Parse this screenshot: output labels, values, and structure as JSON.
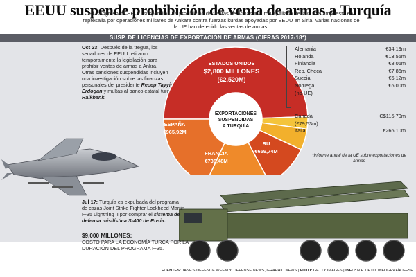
{
  "headline": "EEUU suspende prohibición de venta de armas a Turquía",
  "intro": "El Congreso de EEUU suspendió una prohibición de ventas de armas a Turquía, aliado de la OTAN, impuesta en represalia por operaciones militares de Ankara contra fuerzas kurdas apoyadas por EEUU en Siria. Varias naciones de la UE han detenido las ventas de armas.",
  "section_title": "SUSP. DE LICENCIAS DE EXPORTACIÓN DE ARMAS (CIFRAS 2017-18*)",
  "oct_note": {
    "date": "Oct 23:",
    "p1": "Después de la tregua, los senadores de EEUU retiraron temporalmente la legislación para prohibir ventas de armas a Ankra.",
    "p2a": "Otras sanciones suspendidas incluyen una investigación sobre las finanzas personales del presidente ",
    "person": "Recep Tayyip Erdogan",
    "p2b": " y multas al banco estatal turco ",
    "bank": "Halkbank."
  },
  "jul_note": {
    "date": "Jul 17:",
    "p1": " Turquía es expulsada del programa de cazas Joint Strike Fighter Lockheed Martin F-35 Lightning II por comprar el ",
    "system": "sistema de defensa misilística S-400 de Rusia."
  },
  "cost_note": {
    "amount": "$9,000 MILLONES:",
    "text": "COSTO PARA LA ECONOMÍA TURCA POR LA DURACIÓN DEL PROGRAMA F-35."
  },
  "donut": {
    "center_l1": "EXPORTACIONES",
    "center_l2": "SUSPENDIDAS",
    "center_l3": "A TURQUÍA",
    "usa_l1": "ESTADOS UNIDOS",
    "usa_l2": "$2,800 MILLONES",
    "usa_l3": "(€2,520M)",
    "spain_l1": "ESPAÑA",
    "spain_l2": "€965,92M",
    "france_l1": "FRANCIA",
    "france_l2": "€736,48M",
    "uk_l1": "RU",
    "uk_l2": "€659,74M",
    "colors": {
      "usa": "#c62d26",
      "spain": "#e6702a",
      "france": "#ef8a2a",
      "uk": "#d4491f",
      "others": "#f2b02c",
      "canada": "#f4c43b",
      "italy": "#f2b02c"
    }
  },
  "eu_list": [
    {
      "country": "Alemania",
      "value": "€34,19m"
    },
    {
      "country": "Holanda",
      "value": "€13,55m"
    },
    {
      "country": "Finlandia",
      "value": "€8,06m"
    },
    {
      "country": "Rep. Checa",
      "value": "€7,86m"
    },
    {
      "country": "Suecia",
      "value": "€6,12m"
    },
    {
      "country": "Noruega",
      "value": "€6,00m"
    },
    {
      "country": "(no-UE)",
      "value": ""
    }
  ],
  "other_list": {
    "canada": "Canadá",
    "canada_value": "C$115,70m",
    "canada_eur": "(€79,53m)",
    "italy": "Italia",
    "italy_value": "€266,10m"
  },
  "eu_note": "*Informe anual de la UE sobre exportaciones de armas",
  "footer": {
    "sources_label": "FUENTES:",
    "sources": " JANE'S DEFENCE WEEKLY, DEFENSE NEWS, GRAPHIC NEWS",
    "photo_label": "FOTO:",
    "photo": " GETTY IMAGES",
    "info_label": "INFO:",
    "info": " N.F. DPTO. INFOGRAFÍA GESE"
  }
}
